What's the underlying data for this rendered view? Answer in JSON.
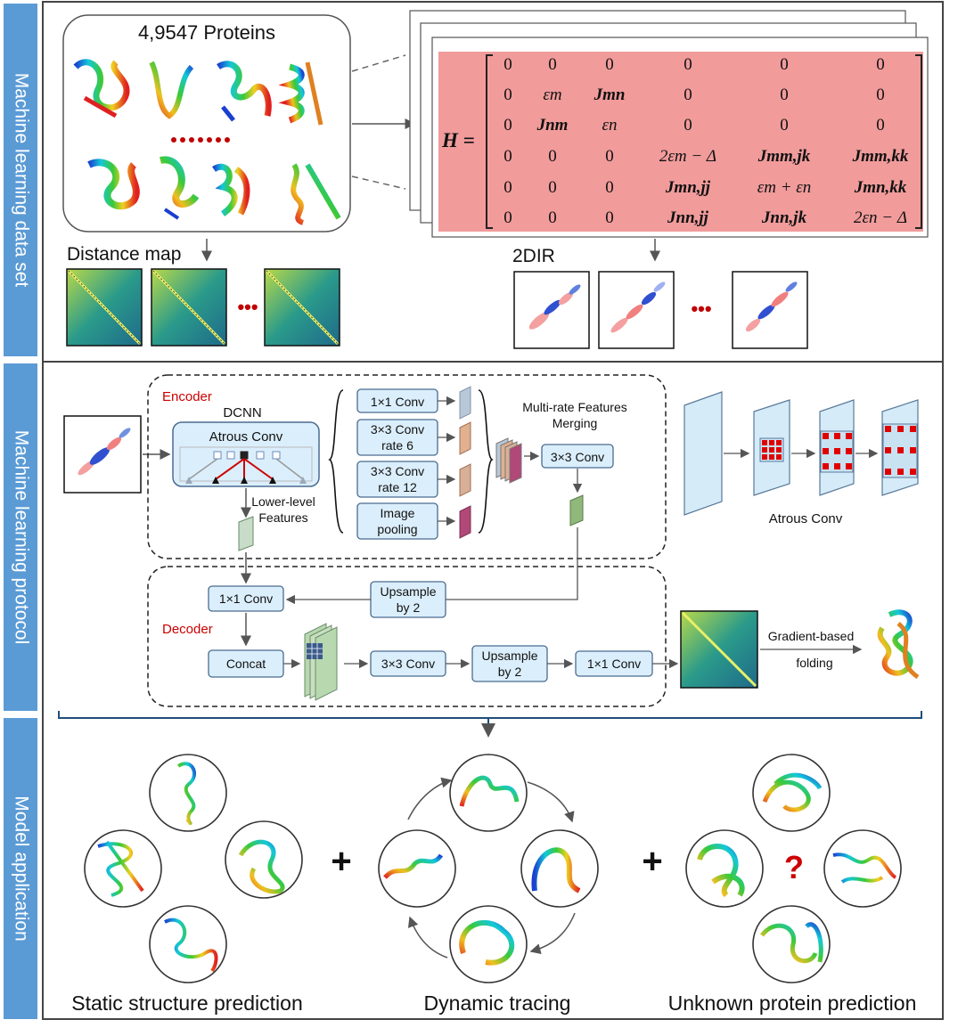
{
  "sections": [
    {
      "label": "Machine learning data set"
    },
    {
      "label": "Machine learning protocol"
    },
    {
      "label": "Model application"
    }
  ],
  "dataset": {
    "proteins_title": "4,9547 Proteins",
    "distance_map_label": "Distance map",
    "ir_label": "2DIR",
    "ellipsis": "•••",
    "matrix_symbol": "H =",
    "matrix_rows": [
      [
        "0",
        "0",
        "0",
        "0",
        "0",
        "0"
      ],
      [
        "0",
        "εm",
        "Jmn",
        "0",
        "0",
        "0"
      ],
      [
        "0",
        "Jnm",
        "εn",
        "0",
        "0",
        "0"
      ],
      [
        "0",
        "0",
        "0",
        "2εm − Δ",
        "Jmm,jk",
        "Jmm,kk"
      ],
      [
        "0",
        "0",
        "0",
        "Jmn,jj",
        "εm + εn",
        "Jmn,kk"
      ],
      [
        "0",
        "0",
        "0",
        "Jnn,jj",
        "Jnn,jk",
        "2εn − Δ"
      ]
    ]
  },
  "protocol": {
    "encoder_label": "Encoder",
    "dcnn_label": "DCNN",
    "atrous_conv": "Atrous Conv",
    "branch_1": "1×1 Conv",
    "branch_2a": "3×3 Conv",
    "branch_2b": "rate 6",
    "branch_3a": "3×3 Conv",
    "branch_3b": "rate 12",
    "branch_4a": "Image",
    "branch_4b": "pooling",
    "merge_a": "Multi-rate Features",
    "merge_b": "Merging",
    "merge_conv": "3×3 Conv",
    "lower_a": "Lower-level",
    "lower_b": "Features",
    "atrous_caption": "Atrous Conv",
    "decoder_label": "Decoder",
    "dec_conv1": "1×1 Conv",
    "dec_up1a": "Upsample",
    "dec_up1b": "by 2",
    "dec_concat": "Concat",
    "dec_conv3": "3×3 Conv",
    "dec_up2a": "Upsample",
    "dec_up2b": "by 2",
    "dec_conv1b": "1×1 Conv",
    "gradient_a": "Gradient-based",
    "gradient_b": "folding"
  },
  "application": {
    "static_label": "Static structure prediction",
    "dynamic_label": "Dynamic tracing",
    "unknown_label": "Unknown protein prediction",
    "plus": "+",
    "question": "?"
  },
  "colors": {
    "sidebar": "#5b9bd5",
    "box_fill": "#dbeefb",
    "box_stroke": "#4a6c8f",
    "matrix_fill": "#f19b9b",
    "red_label": "#cc0000"
  }
}
